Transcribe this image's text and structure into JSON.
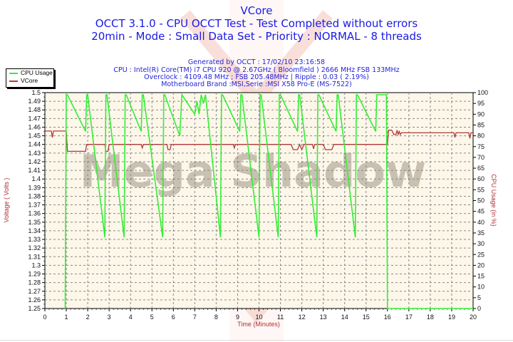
{
  "header": {
    "title": "VCore",
    "line2": "OCCT 3.1.0 - CPU OCCT Test - Test Completed without errors",
    "line3": "20min - Mode : Small Data Set - Priority : NORMAL - 8 threads"
  },
  "info": {
    "generated": "Generated by OCCT : 17/02/10 23:16:58",
    "cpu": "CPU : Intel(R) Core(TM) i7 CPU 920 @ 2.67GHz ( Bloomfield ) 2666 MHz FSB 133MHz",
    "overclock": "Overclock : 4109.48 MHz ; FSB 205.48MHz | Ripple : 0.03 ( 2.19%)",
    "motherboard": "Motherboard Brand :MSI,Serie :MSI X58 Pro-E (MS-7522)"
  },
  "legend": [
    {
      "label": "CPU Usage",
      "color": "#33ee33"
    },
    {
      "label": "VCore",
      "color": "#b03a3a"
    }
  ],
  "watermark": "Mega Shadow",
  "colors": {
    "plot_bg": "#fdf7ea",
    "grid": "#888888",
    "cpu_line": "#33ee33",
    "vcore_line": "#b03a3a",
    "title": "#1a1ae6",
    "axis_label": "#b03030"
  },
  "chart_data": {
    "type": "line",
    "title": "VCore",
    "xlabel": "Time (Minutes)",
    "ylabel": "Voltage ( Volts )",
    "y2label": "CPU Usage (in %)",
    "xlim": [
      0,
      20
    ],
    "ylim": [
      1.25,
      1.5
    ],
    "y2lim": [
      0,
      100
    ],
    "grid": true,
    "legend_position": "top-left, outside plot",
    "x_ticks": [
      "0",
      "1",
      "2",
      "3",
      "4",
      "5",
      "6",
      "7",
      "8",
      "9",
      "10",
      "11",
      "12",
      "13",
      "14",
      "15",
      "16",
      "17",
      "18",
      "19",
      "20"
    ],
    "y_ticks": [
      "1.25",
      "1.26",
      "1.27",
      "1.28",
      "1.29",
      "1.3",
      "1.31",
      "1.32",
      "1.33",
      "1.34",
      "1.35",
      "1.36",
      "1.37",
      "1.38",
      "1.39",
      "1.4",
      "1.41",
      "1.42",
      "1.43",
      "1.44",
      "1.45",
      "1.46",
      "1.47",
      "1.48",
      "1.49",
      "1.5"
    ],
    "y2_ticks": [
      "0",
      "5",
      "10",
      "15",
      "20",
      "25",
      "30",
      "35",
      "40",
      "45",
      "50",
      "55",
      "60",
      "65",
      "70",
      "75",
      "80",
      "85",
      "90",
      "95",
      "100"
    ],
    "series": [
      {
        "name": "VCore",
        "axis": "left",
        "x": [
          0,
          0.3,
          0.35,
          0.4,
          0.45,
          1.0,
          1.05,
          1.9,
          1.95,
          2.8,
          2.85,
          2.95,
          3.0,
          4.5,
          4.55,
          4.6,
          5.7,
          5.75,
          5.85,
          5.9,
          6.0,
          8.8,
          8.85,
          8.9,
          11.5,
          11.6,
          11.8,
          11.9,
          12.0,
          12.1,
          12.5,
          12.55,
          12.6,
          13.0,
          13.1,
          13.4,
          13.5,
          15.9,
          16.0,
          16.05,
          16.2,
          16.3,
          16.4,
          16.45,
          16.5,
          16.55,
          16.6,
          16.65,
          19.1,
          19.15,
          19.2,
          19.8,
          19.85,
          19.9,
          20
        ],
        "values": [
          1.4555,
          1.4555,
          1.448,
          1.4555,
          1.4555,
          1.4555,
          1.432,
          1.432,
          1.44,
          1.44,
          1.432,
          1.432,
          1.44,
          1.44,
          1.436,
          1.44,
          1.44,
          1.434,
          1.434,
          1.44,
          1.44,
          1.44,
          1.436,
          1.44,
          1.44,
          1.434,
          1.434,
          1.44,
          1.434,
          1.44,
          1.44,
          1.435,
          1.44,
          1.44,
          1.434,
          1.434,
          1.44,
          1.44,
          1.4405,
          1.4565,
          1.4565,
          1.4515,
          1.4515,
          1.4565,
          1.4515,
          1.455,
          1.4515,
          1.4535,
          1.4535,
          1.448,
          1.4535,
          1.4535,
          1.447,
          1.4535,
          1.4535
        ]
      },
      {
        "name": "CPU Usage",
        "axis": "right",
        "x": [
          0.95,
          1.0,
          1.05,
          1.9,
          1.95,
          2.0,
          2.8,
          2.85,
          2.9,
          3.7,
          3.75,
          3.8,
          4.5,
          4.55,
          4.6,
          5.5,
          5.55,
          5.6,
          6.3,
          6.4,
          7.0,
          7.1,
          7.2,
          7.3,
          7.4,
          7.5,
          8.2,
          8.25,
          8.3,
          9.1,
          9.15,
          9.2,
          10.0,
          10.05,
          10.1,
          10.9,
          10.95,
          11.0,
          11.8,
          11.85,
          11.9,
          12.7,
          12.75,
          12.8,
          13.6,
          13.65,
          13.7,
          14.5,
          14.55,
          14.6,
          15.45,
          15.5,
          15.55,
          15.95,
          16.0,
          16.05,
          20
        ],
        "values": [
          0,
          99,
          99,
          82,
          99,
          99,
          33,
          99,
          99,
          33,
          99,
          99,
          82,
          99,
          99,
          33,
          99,
          99,
          80,
          99,
          90,
          96,
          90,
          99,
          95,
          99,
          33,
          99,
          99,
          82,
          99,
          99,
          33,
          99,
          99,
          33,
          99,
          99,
          82,
          99,
          99,
          33,
          99,
          99,
          82,
          99,
          99,
          33,
          99,
          99,
          82,
          99,
          99,
          99,
          0,
          0,
          0
        ]
      }
    ]
  }
}
